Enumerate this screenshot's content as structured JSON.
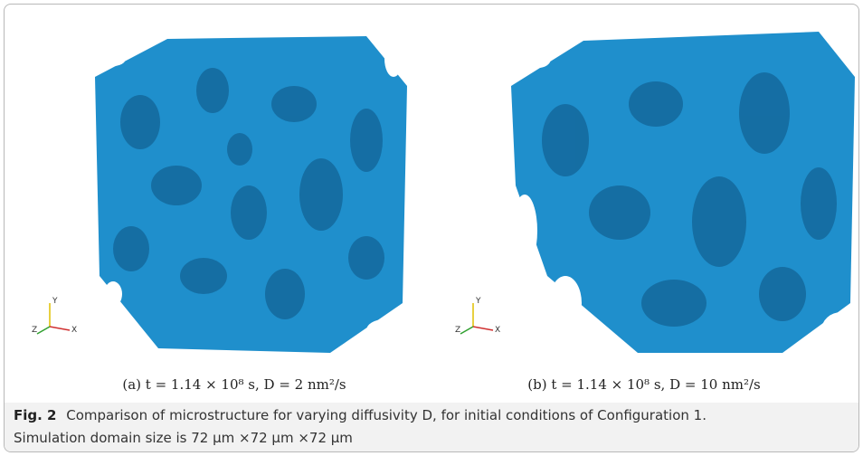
{
  "panels": [
    {
      "caption": "(a) t = 1.14 × 10⁸ s, D = 2 nm²/s",
      "axes": {
        "y": "Y",
        "z": "Z",
        "x": "X"
      }
    },
    {
      "caption": "(b) t = 1.14 × 10⁸ s, D = 10 nm²/s",
      "axes": {
        "y": "Y",
        "z": "Z",
        "x": "X"
      }
    }
  ],
  "caption": {
    "label": "Fig. 2",
    "lines": [
      "Comparison of microstructure for varying diffusivity D, for initial conditions of Configuration 1.",
      "Simulation domain size is 72 μm ×72 μm ×72 μm"
    ]
  }
}
